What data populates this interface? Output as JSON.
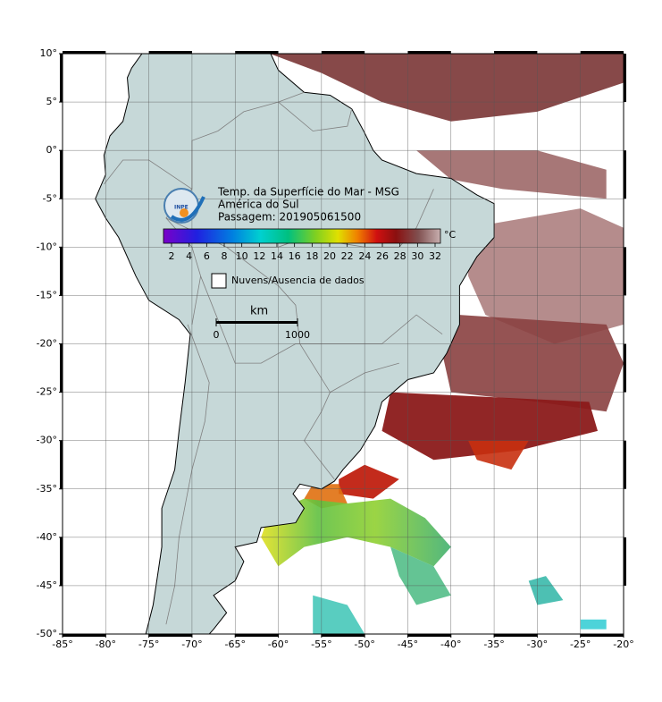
{
  "map": {
    "logo_text": "INPE",
    "title": [
      "Temp. da Superfície do Mar - MSG",
      "América do Sul",
      "Passagem: 201905061500"
    ],
    "colorbar": {
      "unit": "°C",
      "ticks": [
        2,
        4,
        6,
        8,
        10,
        12,
        14,
        16,
        18,
        20,
        22,
        24,
        26,
        28,
        30,
        32
      ]
    },
    "legend": {
      "label": "Nuvens/Ausencia de dados"
    },
    "scale_bar": {
      "unit": "km",
      "ticks": [
        0,
        1000
      ]
    },
    "lon_ticks": [
      {
        "value": -85,
        "label": "-85°"
      },
      {
        "value": -80,
        "label": "-80°"
      },
      {
        "value": -75,
        "label": "-75°"
      },
      {
        "value": -70,
        "label": "-70°"
      },
      {
        "value": -65,
        "label": "-65°"
      },
      {
        "value": -60,
        "label": "-60°"
      },
      {
        "value": -55,
        "label": "-55°"
      },
      {
        "value": -50,
        "label": "-50°"
      },
      {
        "value": -45,
        "label": "-45°"
      },
      {
        "value": -40,
        "label": "-40°"
      },
      {
        "value": -35,
        "label": "-35°"
      },
      {
        "value": -30,
        "label": "-30°"
      },
      {
        "value": -25,
        "label": "-25°"
      },
      {
        "value": -20,
        "label": "-20°"
      }
    ],
    "lat_ticks": [
      {
        "value": 10,
        "label": "10°"
      },
      {
        "value": 5,
        "label": "5°"
      },
      {
        "value": 0,
        "label": "0°"
      },
      {
        "value": -5,
        "label": "-5°"
      },
      {
        "value": -10,
        "label": "-10°"
      },
      {
        "value": -15,
        "label": "-15°"
      },
      {
        "value": -20,
        "label": "-20°"
      },
      {
        "value": -25,
        "label": "-25°"
      },
      {
        "value": -30,
        "label": "-30°"
      },
      {
        "value": -35,
        "label": "-35°"
      },
      {
        "value": -40,
        "label": "-40°"
      },
      {
        "value": -45,
        "label": "-45°"
      },
      {
        "value": -50,
        "label": "-50°"
      }
    ]
  }
}
